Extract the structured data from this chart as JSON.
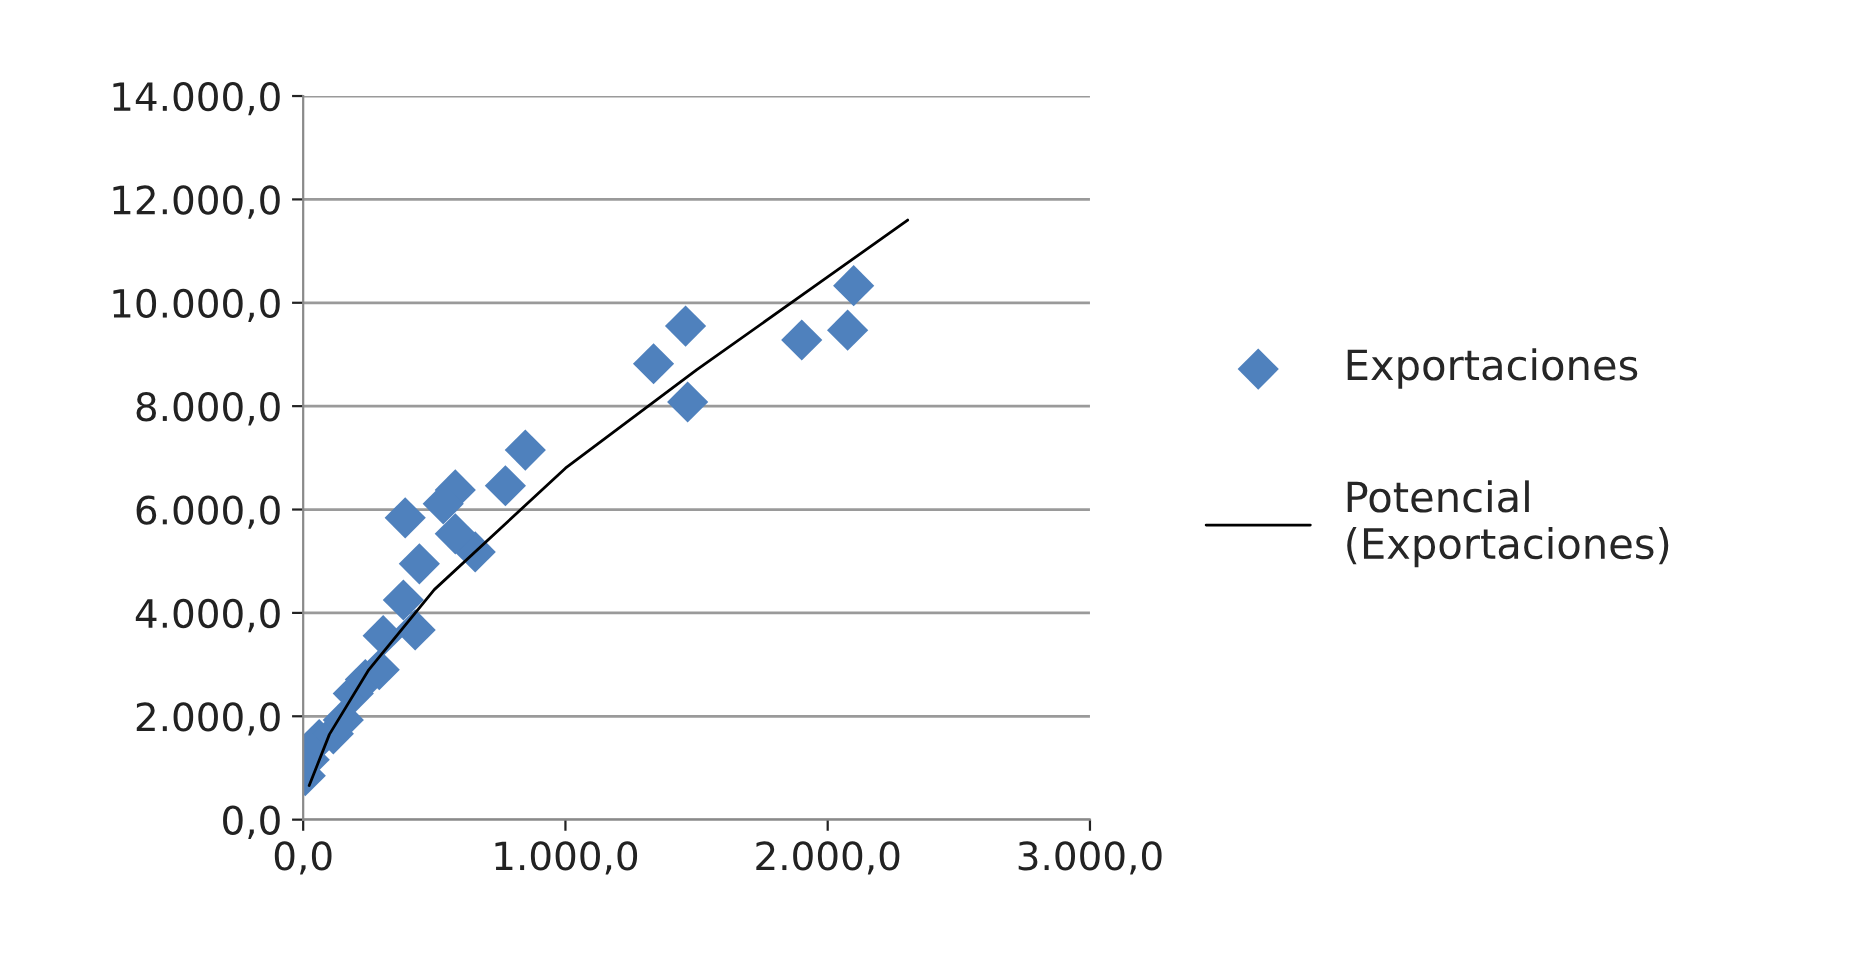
{
  "chart_data": {
    "type": "scatter",
    "marker": "diamond",
    "grid": "y",
    "legend": "right",
    "xlim": [
      0,
      3000
    ],
    "ylim": [
      0,
      14000
    ],
    "xticks": [
      {
        "value": 0,
        "label": "0,0"
      },
      {
        "value": 1000,
        "label": "1.000,0"
      },
      {
        "value": 2000,
        "label": "2.000,0"
      },
      {
        "value": 3000,
        "label": "3.000,0"
      }
    ],
    "yticks": [
      {
        "value": 0,
        "label": "0,0"
      },
      {
        "value": 2000,
        "label": "2.000,0"
      },
      {
        "value": 4000,
        "label": "4.000,0"
      },
      {
        "value": 6000,
        "label": "6.000,0"
      },
      {
        "value": 8000,
        "label": "8.000,0"
      },
      {
        "value": 10000,
        "label": "10.000,0"
      },
      {
        "value": 12000,
        "label": "12.000,0"
      },
      {
        "value": 14000,
        "label": "14.000,0"
      }
    ],
    "series": [
      {
        "name": "Exportaciones",
        "color": "#4f81bd",
        "x": [
          8,
          23,
          61,
          115,
          153,
          191,
          237,
          290,
          305,
          427,
          382,
          443,
          389,
          656,
          580,
          580,
          534,
          771,
          847,
          1336,
          1458,
          1466,
          1901,
          2076,
          2099
        ],
        "values": [
          850,
          1160,
          1550,
          1660,
          1930,
          2440,
          2710,
          2900,
          3560,
          3670,
          4250,
          4950,
          5840,
          5180,
          5530,
          6380,
          6110,
          6460,
          7150,
          8820,
          9550,
          8080,
          9280,
          9470,
          10330
        ]
      },
      {
        "name": "Potencial\n(Exportaciones)",
        "type": "line",
        "marker": "none",
        "color": "#000000",
        "x": [
          23,
          100,
          250,
          500,
          1000,
          1500,
          2000,
          2305
        ],
        "values": [
          660,
          1650,
          2900,
          4450,
          6800,
          8700,
          10500,
          11600
        ]
      }
    ]
  }
}
